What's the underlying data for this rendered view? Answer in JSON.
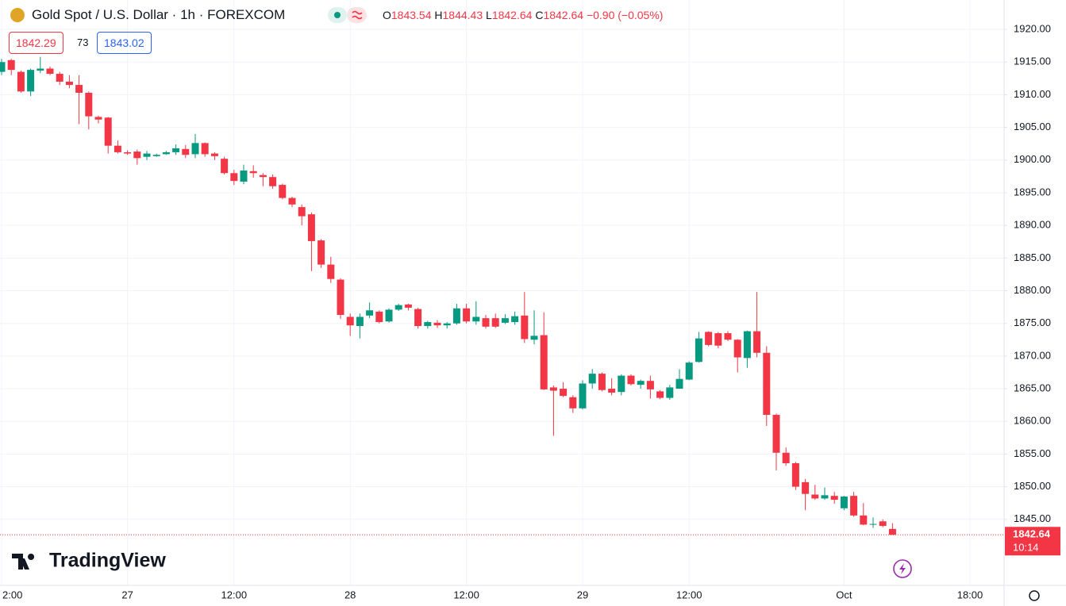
{
  "chart_data": {
    "type": "candlestick",
    "title": "Gold Spot / U.S. Dollar · 1h · FOREXCOM",
    "categories": [
      "2:00",
      null,
      null,
      null,
      null,
      null,
      null,
      null,
      null,
      null,
      null,
      null,
      null,
      "27",
      null,
      null,
      null,
      null,
      null,
      null,
      null,
      null,
      null,
      null,
      "12:00",
      null,
      null,
      null,
      null,
      null,
      null,
      null,
      null,
      null,
      null,
      null,
      "28",
      null,
      null,
      null,
      null,
      null,
      null,
      null,
      null,
      null,
      null,
      null,
      "12:00",
      null,
      null,
      null,
      null,
      null,
      null,
      null,
      null,
      null,
      null,
      null,
      "29",
      null,
      null,
      null,
      null,
      null,
      null,
      null,
      null,
      null,
      null,
      "12:00",
      null,
      null,
      null,
      null,
      null,
      null,
      null,
      null,
      null,
      null,
      null,
      null,
      null,
      null,
      null,
      "Oct",
      null,
      null,
      null,
      null,
      null,
      null,
      null,
      null,
      null,
      null,
      null,
      null,
      "18:00",
      null,
      null,
      null
    ],
    "open": [
      1913.5,
      1915.3,
      1913.5,
      1910.5,
      1913.7,
      1914,
      1913.2,
      1912,
      1911.5,
      1910.3,
      1906.6,
      1906.5,
      1902.2,
      1901.2,
      1901.3,
      1900.5,
      1900.6,
      1900.9,
      1901.2,
      1901.7,
      1900.9,
      1902.6,
      1901,
      1900.2,
      1898,
      1896.7,
      1898.3,
      1897.7,
      1897.4,
      1896.2,
      1894.2,
      1892.8,
      1891.7,
      1887.7,
      1884,
      1881.7,
      1876,
      1874.6,
      1876.2,
      1876.8,
      1875.3,
      1877.1,
      1877.9,
      1877.2,
      1874.6,
      1875.1,
      1874.7,
      1875,
      1877.3,
      1875.3,
      1875.8,
      1875.8,
      1875.1,
      1875.2,
      1876.2,
      1872.5,
      1873.2,
      1865.2,
      1865,
      1863.7,
      1862,
      1865.8,
      1867.3,
      1865,
      1864.5,
      1867,
      1865.6,
      1866.2,
      1864.6,
      1863.6,
      1865,
      1866.4,
      1869.1,
      1873.7,
      1873.5,
      1873.5,
      1872.5,
      1869.7,
      1873.8,
      1870.5,
      1861,
      1855.2,
      1853.6,
      1850.7,
      1848.8,
      1848.2,
      1848.6,
      1846.7,
      1848.6,
      1845.6,
      1844.2,
      1844.7,
      1843.54,
      null,
      null,
      null,
      null,
      null,
      null,
      null,
      null,
      null,
      null,
      null
    ],
    "high": [
      1915.5,
      1915.5,
      1913.7,
      1914,
      1915.8,
      1914.3,
      1913.5,
      1913,
      1913,
      1910.5,
      1906.8,
      1906.6,
      1903,
      1901.5,
      1901.6,
      1901.4,
      1901,
      1901.4,
      1902.4,
      1902.3,
      1904,
      1902.7,
      1901.2,
      1900.5,
      1898.5,
      1899.3,
      1899.2,
      1898,
      1897.8,
      1896.4,
      1894.4,
      1893.2,
      1892,
      1887.9,
      1885.2,
      1881.9,
      1876.5,
      1876.5,
      1878.2,
      1877,
      1877.3,
      1878,
      1878,
      1877.4,
      1875.4,
      1875.5,
      1875.2,
      1878,
      1878,
      1878.4,
      1876.3,
      1876.5,
      1876.4,
      1876.8,
      1879.8,
      1877,
      1876.7,
      1865.5,
      1866,
      1864,
      1866.3,
      1868,
      1867.5,
      1866.6,
      1867.2,
      1867.2,
      1866.4,
      1867,
      1864.8,
      1865.6,
      1868,
      1869.2,
      1873.7,
      1873.8,
      1873.7,
      1873.8,
      1872.6,
      1873.9,
      1879.8,
      1871.5,
      1861.2,
      1856,
      1853.8,
      1851.2,
      1850.3,
      1849.9,
      1849.2,
      1848.6,
      1849.2,
      1847.5,
      1845.3,
      1845,
      1844.43,
      null,
      null,
      null,
      null,
      null,
      null,
      null,
      null,
      null,
      null,
      null
    ],
    "low": [
      1913,
      1913,
      1910.3,
      1909.8,
      1913.3,
      1913,
      1911.5,
      1911,
      1905.5,
      1904.7,
      1905.6,
      1901,
      1901,
      1900.8,
      1899.3,
      1900,
      1900.5,
      1900.8,
      1900.8,
      1900.3,
      1900.3,
      1900.5,
      1900,
      1897.8,
      1896.2,
      1896.3,
      1897.3,
      1896,
      1895.6,
      1894,
      1892.8,
      1890,
      1883,
      1883.5,
      1881.2,
      1875.7,
      1873.1,
      1872.7,
      1875.8,
      1875,
      1875.1,
      1876.9,
      1877,
      1874.2,
      1874.2,
      1874.3,
      1874.2,
      1874.8,
      1875,
      1874.8,
      1874.2,
      1874.3,
      1874.9,
      1874.8,
      1872,
      1871.8,
      1864.8,
      1857.8,
      1863.7,
      1861.3,
      1861.8,
      1865,
      1864.6,
      1864,
      1864,
      1865.5,
      1865,
      1863.5,
      1863.4,
      1863.3,
      1865,
      1866.3,
      1869,
      1871.5,
      1871.2,
      1872.3,
      1867.5,
      1868.2,
      1869.8,
      1859.3,
      1852.5,
      1853.2,
      1849.5,
      1846.4,
      1848,
      1848,
      1847.4,
      1846.4,
      1845.4,
      1844.1,
      1843.7,
      1843.8,
      1842.64,
      null,
      null,
      null,
      null,
      null,
      null,
      null,
      null,
      null,
      null,
      null
    ],
    "close": [
      1915,
      1913.8,
      1910.5,
      1913.8,
      1914,
      1913.2,
      1912,
      1911.5,
      1910.3,
      1906.7,
      1906.2,
      1902.2,
      1901.2,
      1901,
      1900.3,
      1901,
      1900.8,
      1901.2,
      1901.8,
      1900.8,
      1902.6,
      1900.9,
      1900.6,
      1898,
      1896.8,
      1898.4,
      1898,
      1897.4,
      1896,
      1894.2,
      1893.2,
      1891.4,
      1887.6,
      1884,
      1881.8,
      1876.3,
      1874.7,
      1876,
      1877,
      1875.2,
      1877.1,
      1877.8,
      1877.4,
      1874.6,
      1875.2,
      1874.7,
      1875,
      1877.3,
      1875.3,
      1876,
      1874.5,
      1874.5,
      1875.8,
      1876.1,
      1872.6,
      1873.1,
      1864.9,
      1864.7,
      1863.9,
      1862,
      1865.8,
      1867.3,
      1864.8,
      1864.4,
      1867,
      1865.7,
      1866.2,
      1864.9,
      1863.6,
      1865.2,
      1866.5,
      1869,
      1872.7,
      1871.7,
      1871.6,
      1872.5,
      1869.8,
      1873.8,
      1870.5,
      1861,
      1855.2,
      1853.6,
      1850,
      1848.9,
      1848.2,
      1848.7,
      1848,
      1848.5,
      1845.6,
      1844.2,
      1844.3,
      1844,
      1842.64,
      null,
      null,
      null,
      null,
      null,
      null,
      null,
      null,
      null,
      null,
      null
    ],
    "up_color": "#089981",
    "down_color": "#f23645",
    "ylim": [
      1834.9,
      1924.5
    ],
    "yticks": [
      {
        "value": 1845,
        "label": "1845.00"
      },
      {
        "value": 1850,
        "label": "1850.00"
      },
      {
        "value": 1855,
        "label": "1855.00"
      },
      {
        "value": 1860,
        "label": "1860.00"
      },
      {
        "value": 1865,
        "label": "1865.00"
      },
      {
        "value": 1870,
        "label": "1870.00"
      },
      {
        "value": 1875,
        "label": "1875.00"
      },
      {
        "value": 1880,
        "label": "1880.00"
      },
      {
        "value": 1885,
        "label": "1885.00"
      },
      {
        "value": 1890,
        "label": "1890.00"
      },
      {
        "value": 1895,
        "label": "1895.00"
      },
      {
        "value": 1900,
        "label": "1900.00"
      },
      {
        "value": 1905,
        "label": "1905.00"
      },
      {
        "value": 1910,
        "label": "1910.00"
      },
      {
        "value": 1915,
        "label": "1915.00"
      },
      {
        "value": 1920,
        "label": "1920.00"
      }
    ],
    "grid": true
  },
  "header": {
    "ohlc_labels": [
      "O",
      "H",
      "L",
      "C"
    ],
    "change": "−0.90 (−0.05%)",
    "bid": 1842.29,
    "spread": 73,
    "ask": 1843.02,
    "countdown": "10:14",
    "watermark": "TradingView"
  }
}
